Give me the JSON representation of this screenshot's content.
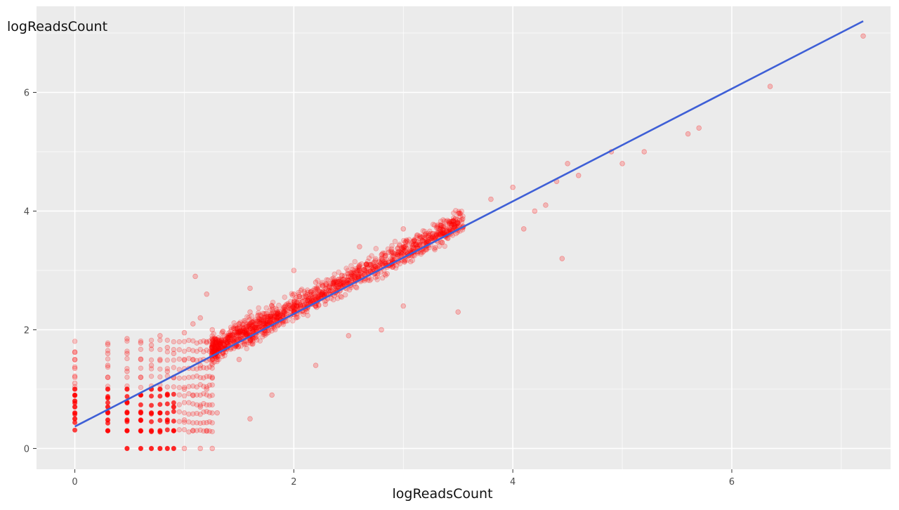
{
  "chart_data": {
    "type": "scatter",
    "title": "",
    "xlabel": "logReadsCount",
    "ylabel": "logReadsCount",
    "xlim": [
      -0.35,
      7.45
    ],
    "ylim": [
      -0.35,
      7.45
    ],
    "x_ticks": [
      0,
      2,
      4,
      6
    ],
    "y_ticks": [
      0,
      2,
      4,
      6
    ],
    "grid": true,
    "panel_background": "#ebebeb",
    "point_color": "#ff0000",
    "line_color": "#3e5fd6",
    "fit_line": {
      "x": [
        0,
        7.2
      ],
      "y": [
        0.37,
        7.2
      ]
    },
    "discrete_x_columns": [
      0,
      0.301,
      0.477,
      0.602,
      0.699,
      0.778,
      0.845,
      0.903,
      0.954,
      1.0,
      1.041,
      1.079,
      1.114,
      1.146,
      1.176,
      1.204,
      1.23,
      1.255
    ],
    "points": [
      [
        0,
        0.5
      ],
      [
        0,
        0.6
      ],
      [
        0,
        0.7
      ],
      [
        0,
        0.8
      ],
      [
        0,
        0.9
      ],
      [
        0,
        1.0
      ],
      [
        0,
        1.1
      ],
      [
        0,
        1.2
      ],
      [
        0,
        1.35
      ],
      [
        0,
        1.5
      ],
      [
        0,
        1.62
      ],
      [
        0.301,
        0.3
      ],
      [
        0.301,
        0.48
      ],
      [
        0.301,
        0.6
      ],
      [
        0.301,
        0.7
      ],
      [
        0.301,
        0.85
      ],
      [
        0.301,
        1.0
      ],
      [
        0.301,
        1.2
      ],
      [
        0.301,
        1.4
      ],
      [
        0.301,
        1.6
      ],
      [
        0.301,
        1.75
      ],
      [
        0.477,
        0.0
      ],
      [
        0.477,
        0.3
      ],
      [
        0.477,
        0.48
      ],
      [
        0.477,
        0.6
      ],
      [
        0.477,
        0.78
      ],
      [
        0.477,
        1.0
      ],
      [
        0.477,
        1.3
      ],
      [
        0.477,
        1.6
      ],
      [
        0.477,
        1.85
      ],
      [
        0.602,
        0.0
      ],
      [
        0.602,
        0.3
      ],
      [
        0.602,
        0.48
      ],
      [
        0.602,
        0.6
      ],
      [
        0.602,
        0.9
      ],
      [
        0.602,
        1.2
      ],
      [
        0.602,
        1.5
      ],
      [
        0.602,
        1.78
      ],
      [
        0.699,
        0.0
      ],
      [
        0.699,
        0.3
      ],
      [
        0.699,
        0.6
      ],
      [
        0.699,
        1.0
      ],
      [
        0.699,
        1.4
      ],
      [
        0.699,
        1.74
      ],
      [
        0.778,
        0.0
      ],
      [
        0.778,
        0.3
      ],
      [
        0.778,
        0.6
      ],
      [
        0.778,
        1.0
      ],
      [
        0.778,
        1.5
      ],
      [
        0.778,
        1.9
      ],
      [
        0.845,
        0.0
      ],
      [
        0.845,
        0.48
      ],
      [
        0.845,
        0.9
      ],
      [
        0.845,
        1.3
      ],
      [
        0.845,
        1.7
      ],
      [
        0.903,
        0.0
      ],
      [
        0.903,
        0.3
      ],
      [
        0.903,
        0.7
      ],
      [
        0.903,
        1.2
      ],
      [
        0.903,
        1.6
      ],
      [
        1.0,
        0.0
      ],
      [
        1.0,
        0.48
      ],
      [
        1.0,
        1.0
      ],
      [
        1.0,
        1.5
      ],
      [
        1.0,
        1.95
      ],
      [
        1.079,
        0.3
      ],
      [
        1.079,
        0.9
      ],
      [
        1.079,
        1.5
      ],
      [
        1.079,
        2.1
      ],
      [
        1.146,
        0.0
      ],
      [
        1.146,
        0.7
      ],
      [
        1.146,
        1.4
      ],
      [
        1.146,
        2.2
      ],
      [
        1.204,
        0.3
      ],
      [
        1.204,
        1.0
      ],
      [
        1.204,
        1.8
      ],
      [
        1.204,
        2.6
      ],
      [
        1.255,
        0.0
      ],
      [
        1.255,
        1.2
      ],
      [
        1.255,
        2.0
      ],
      [
        1.3,
        1.5
      ],
      [
        1.4,
        1.9
      ],
      [
        1.5,
        1.5
      ],
      [
        1.5,
        2.1
      ],
      [
        1.6,
        1.9
      ],
      [
        1.6,
        2.3
      ],
      [
        1.7,
        2.0
      ],
      [
        1.8,
        2.1
      ],
      [
        1.8,
        2.4
      ],
      [
        1.9,
        2.2
      ],
      [
        2.0,
        2.3
      ],
      [
        2.0,
        2.6
      ],
      [
        2.1,
        2.4
      ],
      [
        2.2,
        2.5
      ],
      [
        2.2,
        2.8
      ],
      [
        2.3,
        2.6
      ],
      [
        2.4,
        2.8
      ],
      [
        2.5,
        2.9
      ],
      [
        2.6,
        3.0
      ],
      [
        2.7,
        3.1
      ],
      [
        2.8,
        3.2
      ],
      [
        2.9,
        3.3
      ],
      [
        3.0,
        3.4
      ],
      [
        3.1,
        3.5
      ],
      [
        3.2,
        3.6
      ],
      [
        3.3,
        3.6
      ],
      [
        3.4,
        3.7
      ],
      [
        3.5,
        3.8
      ],
      [
        1.3,
        0.6
      ],
      [
        1.6,
        0.5
      ],
      [
        1.8,
        0.9
      ],
      [
        2.2,
        1.4
      ],
      [
        2.5,
        1.9
      ],
      [
        2.8,
        2.0
      ],
      [
        3.0,
        2.4
      ],
      [
        3.5,
        2.3
      ],
      [
        1.1,
        2.9
      ],
      [
        1.6,
        2.7
      ],
      [
        2.0,
        3.0
      ],
      [
        2.6,
        3.4
      ],
      [
        3.0,
        3.7
      ],
      [
        3.8,
        4.2
      ],
      [
        4.0,
        4.4
      ],
      [
        4.1,
        3.7
      ],
      [
        4.2,
        4.0
      ],
      [
        4.3,
        4.1
      ],
      [
        4.4,
        4.5
      ],
      [
        4.45,
        3.2
      ],
      [
        4.5,
        4.8
      ],
      [
        4.6,
        4.6
      ],
      [
        4.9,
        5.0
      ],
      [
        5.0,
        4.8
      ],
      [
        5.2,
        5.0
      ],
      [
        5.6,
        5.3
      ],
      [
        5.7,
        5.4
      ],
      [
        6.35,
        6.1
      ],
      [
        7.2,
        6.95
      ]
    ]
  }
}
